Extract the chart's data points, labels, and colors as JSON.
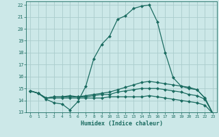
{
  "xlabel": "Humidex (Indice chaleur)",
  "background_color": "#cce8e8",
  "grid_color": "#aacccc",
  "line_color": "#1a6b60",
  "xlim": [
    -0.5,
    23.5
  ],
  "ylim": [
    13,
    22.3
  ],
  "xticks": [
    0,
    1,
    2,
    3,
    4,
    5,
    6,
    7,
    8,
    9,
    10,
    11,
    12,
    13,
    14,
    15,
    16,
    17,
    18,
    19,
    20,
    21,
    22,
    23
  ],
  "yticks": [
    13,
    14,
    15,
    16,
    17,
    18,
    19,
    20,
    21,
    22
  ],
  "series": [
    [
      14.8,
      14.6,
      14.1,
      13.8,
      13.7,
      13.2,
      13.9,
      15.2,
      17.5,
      18.7,
      19.4,
      20.8,
      21.1,
      21.7,
      21.9,
      22.0,
      20.6,
      18.0,
      15.9,
      15.2,
      15.0,
      14.9,
      14.2,
      12.9
    ],
    [
      14.8,
      14.6,
      14.2,
      14.3,
      14.3,
      14.4,
      14.3,
      14.4,
      14.5,
      14.6,
      14.7,
      14.9,
      15.1,
      15.3,
      15.5,
      15.6,
      15.5,
      15.4,
      15.3,
      15.2,
      15.1,
      14.9,
      14.2,
      12.9
    ],
    [
      14.8,
      14.6,
      14.2,
      14.3,
      14.3,
      14.3,
      14.3,
      14.3,
      14.4,
      14.5,
      14.5,
      14.7,
      14.8,
      14.9,
      15.0,
      15.0,
      15.0,
      14.9,
      14.8,
      14.7,
      14.5,
      14.4,
      14.1,
      12.9
    ],
    [
      14.8,
      14.6,
      14.2,
      14.2,
      14.2,
      14.2,
      14.2,
      14.2,
      14.2,
      14.2,
      14.3,
      14.3,
      14.3,
      14.3,
      14.3,
      14.4,
      14.3,
      14.2,
      14.1,
      14.0,
      13.9,
      13.8,
      13.6,
      12.9
    ]
  ]
}
